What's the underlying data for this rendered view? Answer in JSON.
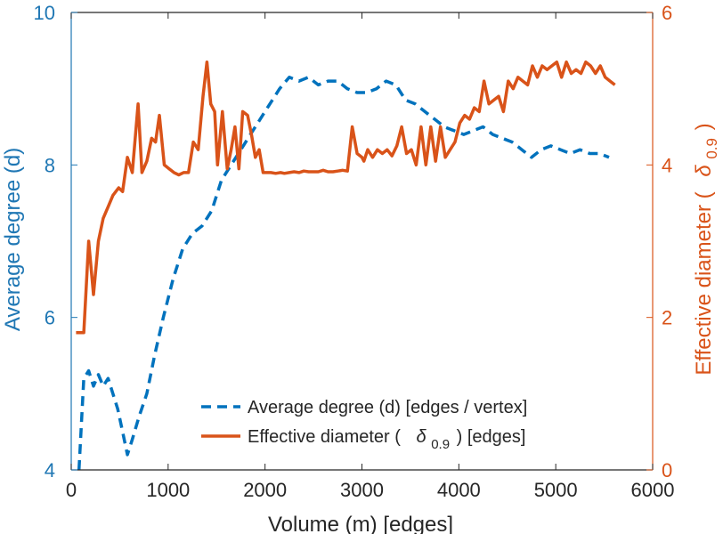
{
  "chart_data": {
    "type": "line",
    "xlabel": "Volume (m) [edges]",
    "xlim": [
      0,
      6000
    ],
    "xticks": [
      0,
      1000,
      2000,
      3000,
      4000,
      5000,
      6000
    ],
    "ylabel_left": "Average degree (d)",
    "ylim_left": [
      4,
      10
    ],
    "yticks_left": [
      4,
      6,
      8,
      10
    ],
    "ylabel_right": "Effective diameter ( δ0.9 )",
    "ylabel_right_prefix": "Effective diameter (",
    "ylabel_right_symbol": "δ",
    "ylabel_right_sub": "0.9",
    "ylabel_right_suffix": ")",
    "ylim_right": [
      0,
      6
    ],
    "yticks_right": [
      0,
      2,
      4,
      6
    ],
    "grid": false,
    "legend_position": "lower-center",
    "colors": {
      "left_axis": "#1f77b4",
      "right_axis": "#d95319",
      "avg_series": "#0072bd",
      "diam_series": "#d95319",
      "axis_line": "#262626"
    },
    "legend": [
      {
        "label": "Average degree (d) [edges / vertex]",
        "style": "dashed"
      },
      {
        "label_prefix": "Effective diameter (",
        "symbol": "δ",
        "sub": "0.9",
        "label_suffix": ") [edges]",
        "style": "solid"
      }
    ],
    "series": [
      {
        "name": "Average degree (d) [edges / vertex]",
        "axis": "left",
        "style": "dashed",
        "x": [
          80,
          130,
          180,
          230,
          280,
          330,
          380,
          430,
          480,
          530,
          580,
          630,
          700,
          780,
          860,
          950,
          1050,
          1150,
          1250,
          1350,
          1450,
          1550,
          1650,
          1750,
          1850,
          1950,
          2050,
          2150,
          2250,
          2350,
          2450,
          2550,
          2650,
          2750,
          2850,
          2950,
          3050,
          3150,
          3250,
          3350,
          3450,
          3550,
          3650,
          3750,
          3850,
          3950,
          4050,
          4150,
          4250,
          4350,
          4450,
          4550,
          4650,
          4750,
          4850,
          4950,
          5050,
          5150,
          5250,
          5350,
          5450,
          5550
        ],
        "values": [
          4.0,
          5.2,
          5.3,
          5.1,
          5.25,
          5.1,
          5.2,
          5.0,
          4.8,
          4.5,
          4.2,
          4.4,
          4.7,
          5.0,
          5.5,
          6.0,
          6.5,
          6.9,
          7.1,
          7.2,
          7.4,
          7.8,
          8.0,
          8.2,
          8.4,
          8.6,
          8.8,
          9.0,
          9.15,
          9.1,
          9.15,
          9.05,
          9.1,
          9.1,
          9.0,
          8.95,
          8.95,
          9.0,
          9.1,
          9.05,
          8.85,
          8.8,
          8.7,
          8.6,
          8.5,
          8.45,
          8.4,
          8.45,
          8.5,
          8.4,
          8.35,
          8.3,
          8.2,
          8.1,
          8.2,
          8.25,
          8.2,
          8.15,
          8.2,
          8.15,
          8.15,
          8.1
        ]
      },
      {
        "name": "Effective diameter (δ0.9) [edges]",
        "axis": "right",
        "style": "solid",
        "x": [
          50,
          130,
          180,
          230,
          280,
          330,
          380,
          430,
          490,
          530,
          580,
          630,
          690,
          730,
          780,
          830,
          870,
          910,
          960,
          1010,
          1060,
          1110,
          1160,
          1210,
          1260,
          1310,
          1360,
          1400,
          1440,
          1480,
          1510,
          1560,
          1610,
          1650,
          1690,
          1730,
          1770,
          1820,
          1860,
          1900,
          1940,
          1980,
          2020,
          2060,
          2110,
          2160,
          2200,
          2250,
          2300,
          2350,
          2400,
          2450,
          2500,
          2550,
          2600,
          2650,
          2700,
          2750,
          2800,
          2850,
          2900,
          2950,
          3000,
          3020,
          3060,
          3110,
          3160,
          3210,
          3260,
          3310,
          3360,
          3410,
          3460,
          3510,
          3560,
          3610,
          3660,
          3710,
          3760,
          3810,
          3860,
          3910,
          3960,
          4010,
          4060,
          4110,
          4160,
          4210,
          4260,
          4310,
          4360,
          4410,
          4460,
          4510,
          4560,
          4610,
          4660,
          4710,
          4760,
          4810,
          4860,
          4910,
          4960,
          5010,
          5060,
          5110,
          5160,
          5210,
          5260,
          5310,
          5360,
          5410,
          5460,
          5510,
          5560,
          5610
        ],
        "values": [
          1.8,
          1.8,
          3.0,
          2.3,
          3.0,
          3.3,
          3.45,
          3.6,
          3.7,
          3.65,
          4.1,
          3.9,
          4.8,
          3.9,
          4.05,
          4.35,
          4.3,
          4.65,
          4.0,
          3.95,
          3.9,
          3.87,
          3.9,
          3.9,
          4.3,
          4.2,
          4.9,
          5.35,
          4.8,
          4.7,
          4.0,
          4.7,
          3.95,
          4.2,
          4.5,
          3.95,
          4.7,
          4.65,
          4.4,
          4.1,
          4.2,
          3.9,
          3.9,
          3.9,
          3.89,
          3.9,
          3.89,
          3.9,
          3.91,
          3.9,
          3.92,
          3.91,
          3.91,
          3.91,
          3.93,
          3.91,
          3.91,
          3.92,
          3.93,
          3.92,
          4.5,
          4.15,
          4.1,
          4.05,
          4.2,
          4.1,
          4.2,
          4.15,
          4.2,
          4.12,
          4.25,
          4.5,
          4.15,
          4.2,
          4.0,
          4.5,
          4.0,
          4.5,
          4.05,
          4.5,
          4.1,
          4.2,
          4.3,
          4.55,
          4.65,
          4.6,
          4.75,
          4.7,
          5.1,
          4.8,
          4.85,
          4.9,
          4.7,
          5.1,
          5.0,
          5.15,
          5.1,
          5.05,
          5.3,
          5.15,
          5.3,
          5.25,
          5.3,
          5.35,
          5.15,
          5.35,
          5.2,
          5.25,
          5.2,
          5.35,
          5.3,
          5.2,
          5.3,
          5.15,
          5.1,
          5.05
        ]
      }
    ]
  }
}
